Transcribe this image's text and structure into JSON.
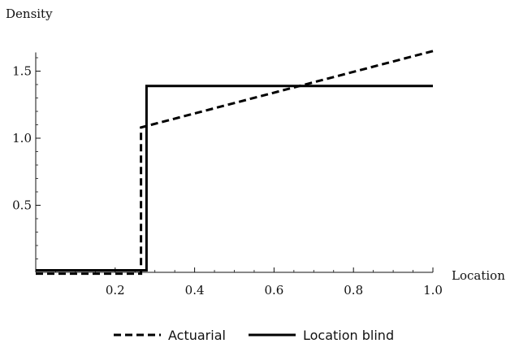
{
  "chart_data": {
    "type": "line",
    "xlabel": "Location",
    "ylabel": "Density",
    "xlim": [
      0,
      1.0
    ],
    "ylim": [
      0,
      1.7
    ],
    "x_ticks": [
      0.2,
      0.4,
      0.6,
      0.8,
      1.0
    ],
    "x_tick_labels": [
      "0.2",
      "0.4",
      "0.6",
      "0.8",
      "1.0"
    ],
    "y_ticks": [
      0.5,
      1.0,
      1.5
    ],
    "y_tick_labels": [
      "0.5",
      "1.0",
      "1.5"
    ],
    "grid": false,
    "legend_position": "bottom",
    "series": [
      {
        "name": "Actuarial",
        "style": "dashed",
        "color": "#000000",
        "x": [
          0,
          0.265,
          0.265,
          1.0
        ],
        "y": [
          -0.01,
          -0.01,
          1.08,
          1.65
        ]
      },
      {
        "name": "Location blind",
        "style": "solid",
        "color": "#000000",
        "x": [
          0,
          0.279,
          0.279,
          1.0
        ],
        "y": [
          0.015,
          0.015,
          1.39,
          1.39
        ]
      }
    ]
  }
}
